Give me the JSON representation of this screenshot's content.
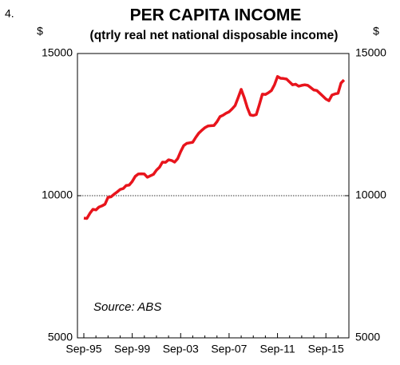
{
  "chart_data": {
    "type": "line",
    "label": "4.",
    "title": "PER CAPITA INCOME",
    "subtitle": "(qtrly real net national disposable income)",
    "ylabel": "$",
    "y2label": "$",
    "annotation": "Source: ABS",
    "categories": [
      "Sep-95",
      null,
      null,
      null,
      null,
      null,
      null,
      null,
      null,
      null,
      null,
      null,
      null,
      null,
      null,
      null,
      "Sep-99",
      null,
      null,
      null,
      null,
      null,
      null,
      null,
      null,
      null,
      null,
      null,
      null,
      null,
      null,
      null,
      "Sep-03",
      null,
      null,
      null,
      null,
      null,
      null,
      null,
      null,
      null,
      null,
      null,
      null,
      null,
      null,
      null,
      "Sep-07",
      null,
      null,
      null,
      null,
      null,
      null,
      null,
      null,
      null,
      null,
      null,
      null,
      null,
      null,
      null,
      "Sep-11",
      null,
      null,
      null,
      null,
      null,
      null,
      null,
      null,
      null,
      null,
      null,
      null,
      null,
      null,
      null,
      "Sep-15",
      null,
      null,
      null,
      null,
      null,
      null
    ],
    "values": [
      9210,
      9200,
      9380,
      9520,
      9500,
      9600,
      9640,
      9700,
      9940,
      9960,
      10050,
      10130,
      10220,
      10250,
      10360,
      10370,
      10500,
      10680,
      10760,
      10770,
      10760,
      10650,
      10700,
      10750,
      10900,
      11000,
      11180,
      11170,
      11260,
      11240,
      11180,
      11300,
      11550,
      11760,
      11840,
      11860,
      11880,
      12050,
      12200,
      12300,
      12390,
      12450,
      12460,
      12470,
      12600,
      12780,
      12830,
      12900,
      12950,
      13050,
      13170,
      13450,
      13740,
      13450,
      13100,
      12840,
      12820,
      12850,
      13200,
      13570,
      13560,
      13620,
      13700,
      13900,
      14190,
      14130,
      14120,
      14100,
      14000,
      13900,
      13920,
      13850,
      13880,
      13900,
      13880,
      13800,
      13720,
      13700,
      13600,
      13500,
      13400,
      13340,
      13540,
      13580,
      13600,
      13960,
      14070
    ],
    "color": "#e8141c",
    "ylim": [
      5000,
      15000
    ],
    "yticks": [
      5000,
      10000,
      15000
    ],
    "y2lim": [
      5000,
      15000
    ],
    "y2ticks": [
      5000,
      10000,
      15000
    ],
    "hline": 10000
  }
}
